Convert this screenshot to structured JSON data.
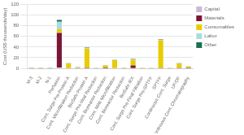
{
  "chart_data": {
    "type": "bar",
    "ylabel": "Cost (US$ thousands/day)",
    "categories": [
      "M-3",
      "M-2",
      "N-1",
      "Perfusion",
      "Cont. Surge Pre-Protein A",
      "Cont. Microfiltration Reduction",
      "BioSafe Protein A",
      "Cont. Surge Pre-Viral Reduction",
      "Cont. Bioreactor Reduction",
      "Cont. MAb Microfiltration",
      "Cont. Bioreactor Reduction",
      "BioSafe IEX",
      "Cont. Surge Pre-Final Filtration",
      "Cont. Surge Pre-SPTFF",
      "SPTFF",
      "Continuous Cont. Surge",
      "UF/DF",
      "Continuous Cont. Chromatography"
    ],
    "series": [
      {
        "name": "Capital",
        "color": "#c9b8d5",
        "values": [
          0.2,
          0.2,
          0.2,
          1.5,
          0.2,
          0.2,
          0.5,
          0.2,
          0.2,
          0.2,
          0.2,
          0.5,
          0.2,
          0.2,
          0.5,
          0.2,
          0.5,
          0.5
        ]
      },
      {
        "name": "Materials",
        "color": "#7b1535",
        "values": [
          0.1,
          0.1,
          0.2,
          65.0,
          0.2,
          0.3,
          0.5,
          0.2,
          1.5,
          0.2,
          0.2,
          5.0,
          0.2,
          0.2,
          0.2,
          0.2,
          0.2,
          0.5
        ]
      },
      {
        "name": "Consumables",
        "color": "#e8cc00",
        "values": [
          0.3,
          0.3,
          0.5,
          7.0,
          8.5,
          1.2,
          36.0,
          0.3,
          3.5,
          15.0,
          0.8,
          10.5,
          0.3,
          0.3,
          52.0,
          0.3,
          8.0,
          2.5
        ]
      },
      {
        "name": "Labor",
        "color": "#a8dde0",
        "values": [
          0.3,
          0.3,
          0.3,
          14.0,
          0.3,
          0.3,
          1.2,
          0.3,
          0.3,
          0.3,
          0.3,
          0.8,
          0.3,
          0.3,
          1.0,
          0.3,
          1.2,
          0.3
        ]
      },
      {
        "name": "Other",
        "color": "#1a7050",
        "values": [
          0.2,
          0.2,
          0.2,
          3.5,
          0.2,
          0.2,
          0.8,
          0.2,
          0.2,
          0.2,
          0.2,
          0.7,
          0.2,
          0.2,
          0.5,
          0.2,
          0.4,
          0.2
        ]
      }
    ],
    "stacked": true,
    "ylim": [
      0,
      120
    ],
    "yticks": [
      0,
      20,
      40,
      60,
      80,
      100,
      120
    ],
    "grid": true,
    "legend": "upper right"
  }
}
